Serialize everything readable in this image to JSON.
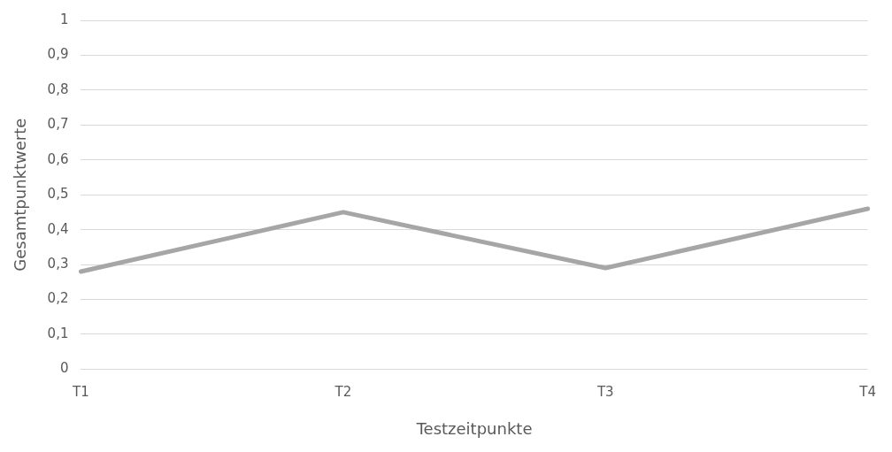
{
  "chart_data": {
    "type": "line",
    "xlabel": "Testzeitpunkte",
    "ylabel": "Gesamtpunktwerte",
    "categories": [
      "T1",
      "T2",
      "T3",
      "T4"
    ],
    "series": [
      {
        "color": "#a6a6a6",
        "values": [
          0.28,
          0.45,
          0.29,
          0.46
        ]
      }
    ],
    "ylim": [
      0,
      1
    ],
    "yticks": [
      {
        "value": 0,
        "label": "0"
      },
      {
        "value": 0.1,
        "label": "0,1"
      },
      {
        "value": 0.2,
        "label": "0,2"
      },
      {
        "value": 0.3,
        "label": "0,3"
      },
      {
        "value": 0.4,
        "label": "0,4"
      },
      {
        "value": 0.5,
        "label": "0,5"
      },
      {
        "value": 0.6,
        "label": "0,6"
      },
      {
        "value": 0.7,
        "label": "0,7"
      },
      {
        "value": 0.8,
        "label": "0,8"
      },
      {
        "value": 0.9,
        "label": "0,9"
      },
      {
        "value": 1,
        "label": "1"
      }
    ],
    "grid": "y",
    "legend": false,
    "marker": "none",
    "line_style": "solid"
  }
}
